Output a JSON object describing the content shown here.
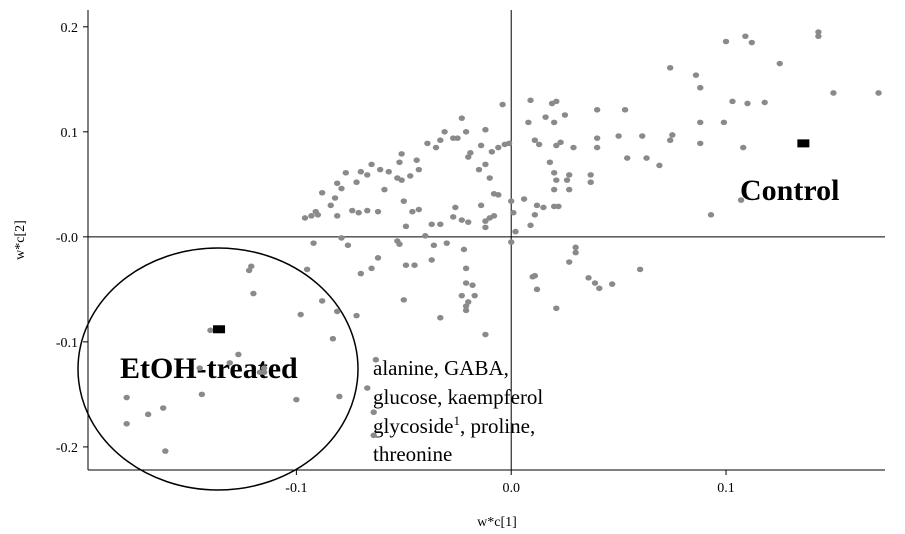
{
  "chart_data": {
    "type": "scatter",
    "xlabel": "w*c[1]",
    "ylabel": "w*c[2]",
    "xlim": [
      -0.197,
      0.174
    ],
    "ylim": [
      -0.222,
      0.216
    ],
    "xticks": [
      -0.1,
      {
        "value": 0,
        "label": "0.0"
      },
      0.1
    ],
    "yticks": [
      0.2,
      0.1,
      {
        "value": 0,
        "label": "-0.0"
      },
      -0.1,
      -0.2
    ],
    "annotations": [
      "Control",
      "EtOH-treated"
    ],
    "compound_note": [
      "alanine, GABA,",
      "glucose, kaempferol",
      "glycoside",
      "1",
      ", proline,",
      "threonine"
    ],
    "series": [
      {
        "color": "#8a8a8a",
        "marker": "dot",
        "x": [
          0.143,
          0.143,
          0.109,
          0.112,
          0.1,
          0.125,
          0.074,
          0.086,
          0.171,
          0.15,
          0.088,
          0.103,
          0.11,
          0.118,
          0.053,
          0.099,
          0.108,
          0.088,
          0.088,
          0.075,
          0.074,
          0.061,
          0.05,
          0.054,
          0.063,
          0.069,
          0.093,
          0.107,
          0.06,
          0.036,
          0.039,
          0.041,
          0.047,
          0.021,
          0.027,
          0.03,
          0.03,
          0.011,
          0.012,
          0.01,
          -0.004,
          0.009,
          0.021,
          0.019,
          0.008,
          0.016,
          0.02,
          0.025,
          0.04,
          0.011,
          0.013,
          0.023,
          0.021,
          0.029,
          0.04,
          0.04,
          0.018,
          0.02,
          0.021,
          0.02,
          0.026,
          0.027,
          0.037,
          0.037,
          0.027,
          0.02,
          0.022,
          0.015,
          0.012,
          0.011,
          0.009,
          0.002,
          0.0,
          0.001,
          0.0,
          0.006,
          -0.008,
          -0.006,
          -0.01,
          -0.008,
          -0.014,
          -0.012,
          -0.012,
          -0.01,
          -0.015,
          -0.012,
          -0.014,
          -0.012,
          -0.003,
          -0.001,
          -0.006,
          -0.009,
          -0.019,
          -0.02,
          -0.021,
          -0.023,
          -0.025,
          -0.031,
          -0.027,
          -0.033,
          -0.035,
          -0.039,
          -0.044,
          -0.043,
          -0.047,
          -0.051,
          -0.052,
          -0.053,
          -0.051,
          -0.057,
          -0.061,
          -0.065,
          -0.067,
          -0.07,
          -0.072,
          -0.077,
          -0.081,
          -0.079,
          -0.082,
          -0.088,
          -0.084,
          -0.09,
          -0.096,
          -0.093,
          -0.091,
          -0.081,
          -0.074,
          -0.071,
          -0.067,
          -0.062,
          -0.059,
          -0.05,
          -0.046,
          -0.043,
          -0.049,
          -0.052,
          -0.053,
          -0.04,
          -0.037,
          -0.033,
          -0.027,
          -0.026,
          -0.023,
          -0.02,
          -0.036,
          -0.03,
          -0.022,
          -0.021,
          -0.037,
          -0.049,
          -0.045,
          -0.065,
          -0.062,
          -0.07,
          -0.076,
          -0.092,
          -0.095,
          -0.079,
          -0.088,
          -0.081,
          -0.072,
          -0.083,
          -0.05,
          -0.021,
          -0.023,
          -0.02,
          -0.021,
          -0.021,
          -0.017,
          -0.018,
          -0.012,
          -0.033,
          -0.121,
          -0.122,
          -0.12,
          -0.115,
          -0.1,
          -0.127,
          -0.14,
          -0.145,
          -0.144,
          -0.131,
          -0.098,
          -0.063,
          -0.067,
          -0.08,
          -0.064,
          -0.064,
          -0.117,
          -0.115,
          -0.179,
          -0.179,
          -0.169,
          -0.162,
          -0.161
        ],
        "values": [
          0.195,
          0.191,
          0.191,
          0.185,
          0.186,
          0.165,
          0.161,
          0.154,
          0.137,
          0.137,
          0.142,
          0.129,
          0.127,
          0.128,
          0.121,
          0.109,
          0.085,
          0.109,
          0.089,
          0.097,
          0.092,
          0.096,
          0.096,
          0.075,
          0.075,
          0.068,
          0.021,
          0.035,
          -0.031,
          -0.039,
          -0.044,
          -0.049,
          -0.045,
          -0.068,
          -0.024,
          -0.015,
          -0.01,
          -0.037,
          -0.05,
          -0.038,
          0.126,
          0.13,
          0.129,
          0.127,
          0.109,
          0.114,
          0.109,
          0.116,
          0.121,
          0.092,
          0.088,
          0.09,
          0.087,
          0.085,
          0.094,
          0.085,
          0.071,
          0.061,
          0.054,
          0.045,
          0.054,
          0.045,
          0.059,
          0.052,
          0.059,
          0.029,
          0.029,
          0.028,
          0.03,
          0.021,
          0.011,
          0.005,
          -0.005,
          0.023,
          0.034,
          0.036,
          0.041,
          0.04,
          0.018,
          0.02,
          0.03,
          0.015,
          0.009,
          0.056,
          0.064,
          0.069,
          0.087,
          0.102,
          0.088,
          0.089,
          0.085,
          0.081,
          0.08,
          0.076,
          0.1,
          0.113,
          0.094,
          0.1,
          0.094,
          0.092,
          0.085,
          0.089,
          0.073,
          0.064,
          0.058,
          0.079,
          0.071,
          0.056,
          0.054,
          0.062,
          0.064,
          0.069,
          0.059,
          0.062,
          0.052,
          0.061,
          0.051,
          0.046,
          0.037,
          0.042,
          0.03,
          0.021,
          0.018,
          0.02,
          0.024,
          0.02,
          0.025,
          0.023,
          0.025,
          0.024,
          0.045,
          0.034,
          0.024,
          0.026,
          0.01,
          -0.007,
          -0.004,
          0.001,
          0.012,
          0.012,
          0.019,
          0.028,
          0.016,
          0.014,
          -0.008,
          -0.006,
          -0.012,
          -0.03,
          -0.022,
          -0.027,
          -0.027,
          -0.03,
          -0.02,
          -0.035,
          -0.008,
          -0.006,
          -0.031,
          -0.001,
          -0.061,
          -0.071,
          -0.075,
          -0.097,
          -0.06,
          -0.044,
          -0.056,
          -0.062,
          -0.066,
          -0.07,
          -0.056,
          -0.046,
          -0.093,
          -0.077,
          -0.028,
          -0.032,
          -0.054,
          -0.129,
          -0.155,
          -0.112,
          -0.089,
          -0.125,
          -0.15,
          -0.12,
          -0.074,
          -0.117,
          -0.144,
          -0.152,
          -0.167,
          -0.189,
          -0.129,
          -0.125,
          -0.153,
          -0.178,
          -0.169,
          -0.163,
          -0.204
        ]
      },
      {
        "color": "#000000",
        "marker": "square",
        "x": [
          -0.136,
          0.136
        ],
        "values": [
          -0.088,
          0.089
        ]
      }
    ]
  }
}
